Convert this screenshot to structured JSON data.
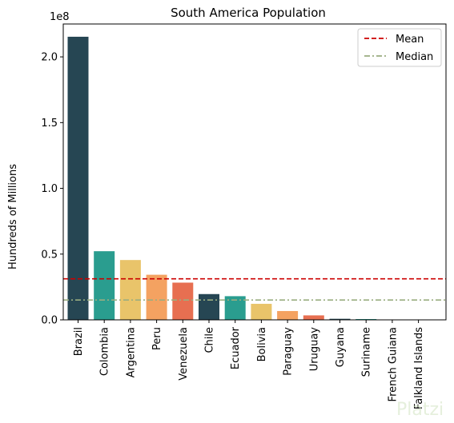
{
  "chart_data": {
    "type": "bar",
    "title": "South America Population",
    "ylabel": "Hundreds of Millions",
    "xlabel": "",
    "offset_text": "1e8",
    "categories": [
      "Brazil",
      "Colombia",
      "Argentina",
      "Peru",
      "Venezuela",
      "Chile",
      "Ecuador",
      "Bolivia",
      "Paraguay",
      "Uruguay",
      "Guyana",
      "Suriname",
      "French Guiana",
      "Falkland Islands"
    ],
    "values": [
      215300000,
      52200000,
      45500000,
      34300000,
      28300000,
      19600000,
      18000000,
      12200000,
      6700000,
      3400000,
      800000,
      600000,
      300000,
      3500
    ],
    "colors": [
      "#264653",
      "#2a9d8f",
      "#e9c46a",
      "#f4a261",
      "#e76f51",
      "#264653",
      "#2a9d8f",
      "#e9c46a",
      "#f4a261",
      "#e76f51",
      "#264653",
      "#2a9d8f",
      "#e9c46a",
      "#f4a261"
    ],
    "ylim": [
      0,
      225000000
    ],
    "yticks": [
      0,
      50000000,
      100000000,
      150000000,
      200000000
    ],
    "ytick_labels": [
      "0.0",
      "0.5",
      "1.0",
      "1.5",
      "2.0"
    ],
    "reference_lines": [
      {
        "name": "Mean",
        "value": 31200000,
        "color": "#cc0000",
        "style": "dashed"
      },
      {
        "name": "Median",
        "value": 15100000,
        "color": "#9aad80",
        "style": "dashdot"
      }
    ],
    "legend": {
      "placement": "top-right",
      "entries": [
        "Mean",
        "Median"
      ]
    },
    "grid": false
  },
  "watermark": {
    "text": "Platzi"
  }
}
